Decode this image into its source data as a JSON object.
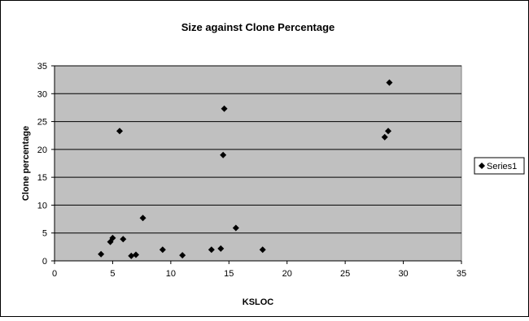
{
  "chart_data": {
    "type": "scatter",
    "title": "Size against Clone Percentage",
    "xlabel": "KSLOC",
    "ylabel": "Clone percentage",
    "xlim": [
      0,
      35
    ],
    "ylim": [
      0,
      35
    ],
    "xticks": [
      0,
      5,
      10,
      15,
      20,
      25,
      30,
      35
    ],
    "yticks": [
      0,
      5,
      10,
      15,
      20,
      25,
      30,
      35
    ],
    "grid": "horizontal",
    "legend_position": "right",
    "plot_background": "#c0c0c0",
    "marker_color": "#000000",
    "series": [
      {
        "name": "Series1",
        "points": [
          {
            "x": 4.0,
            "y": 1.2
          },
          {
            "x": 4.8,
            "y": 3.4
          },
          {
            "x": 5.0,
            "y": 4.1
          },
          {
            "x": 5.6,
            "y": 23.3
          },
          {
            "x": 5.9,
            "y": 3.9
          },
          {
            "x": 6.6,
            "y": 0.9
          },
          {
            "x": 7.0,
            "y": 1.1
          },
          {
            "x": 7.6,
            "y": 7.7
          },
          {
            "x": 9.3,
            "y": 2.0
          },
          {
            "x": 11.0,
            "y": 1.0
          },
          {
            "x": 13.5,
            "y": 2.0
          },
          {
            "x": 14.3,
            "y": 2.2
          },
          {
            "x": 14.5,
            "y": 19.0
          },
          {
            "x": 14.6,
            "y": 27.3
          },
          {
            "x": 15.6,
            "y": 5.9
          },
          {
            "x": 17.9,
            "y": 2.0
          },
          {
            "x": 28.4,
            "y": 22.2
          },
          {
            "x": 28.7,
            "y": 23.3
          },
          {
            "x": 28.8,
            "y": 32.0
          }
        ]
      }
    ]
  }
}
